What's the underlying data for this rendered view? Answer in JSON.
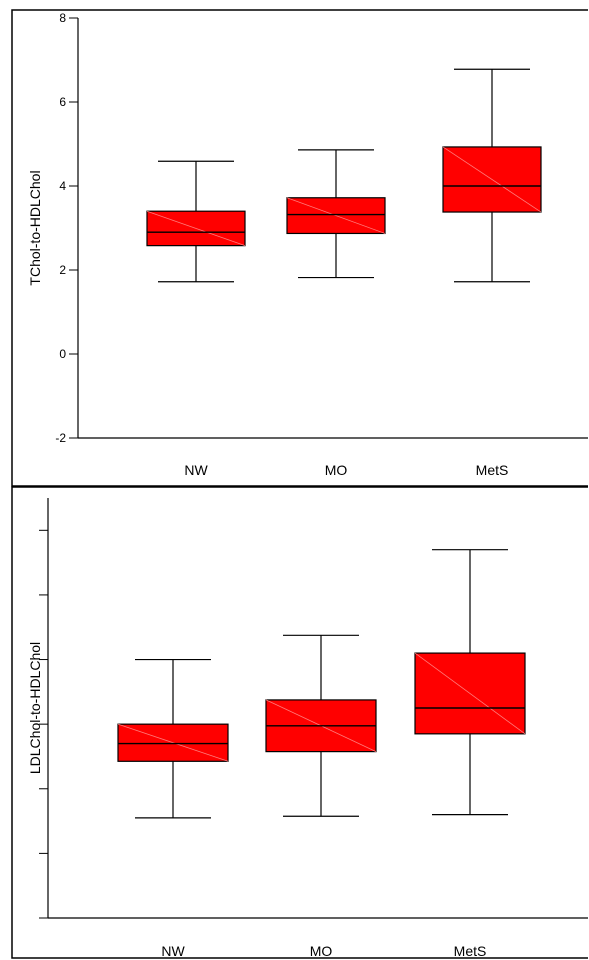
{
  "colors": {
    "box_fill": "#ff0000",
    "stroke": "#000000",
    "background": "#ffffff"
  },
  "chart_data": [
    {
      "type": "box",
      "ylabel": "TChol-to-HDLChol",
      "categories": [
        "NW",
        "MO",
        "MetS"
      ],
      "ylim": [
        -2,
        8
      ],
      "yticks": [
        -2,
        0,
        2,
        4,
        6,
        8
      ],
      "show_ytick_labels": true,
      "grid": false,
      "boxes": [
        {
          "category": "NW",
          "min": 1.72,
          "q1": 2.58,
          "median": 2.9,
          "q3": 3.4,
          "max": 4.59
        },
        {
          "category": "MO",
          "min": 1.82,
          "q1": 2.87,
          "median": 3.32,
          "q3": 3.72,
          "max": 4.86
        },
        {
          "category": "MetS",
          "min": 1.72,
          "q1": 3.38,
          "median": 4.0,
          "q3": 4.93,
          "max": 6.78
        }
      ]
    },
    {
      "type": "box",
      "ylabel": "LDLChol-to-HDLChol",
      "categories": [
        "NW",
        "MO",
        "MetS"
      ],
      "ylim": [
        0,
        13
      ],
      "yticks": [
        0,
        1,
        2,
        3,
        4,
        5,
        6,
        7,
        8,
        9,
        10,
        11,
        12,
        13
      ],
      "show_ytick_labels": false,
      "grid": false,
      "boxes": [
        {
          "category": "NW",
          "min": 3.1,
          "q1": 4.85,
          "median": 5.4,
          "q3": 6.0,
          "max": 8.0
        },
        {
          "category": "MO",
          "min": 3.15,
          "q1": 5.15,
          "median": 5.95,
          "q3": 6.75,
          "max": 8.75
        },
        {
          "category": "MetS",
          "min": 3.2,
          "q1": 5.7,
          "median": 6.5,
          "q3": 8.2,
          "max": 11.4
        }
      ]
    }
  ]
}
